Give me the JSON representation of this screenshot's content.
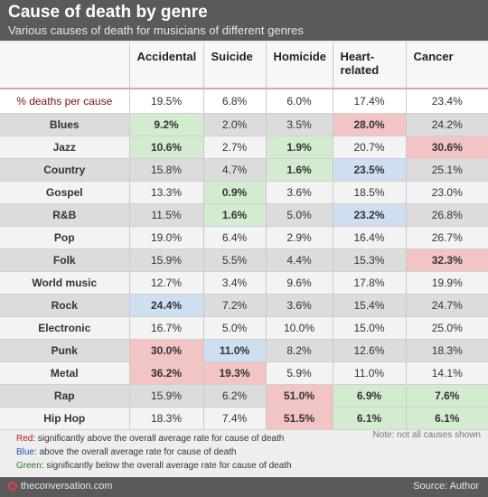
{
  "header": {
    "title": "Cause of death by genre",
    "subtitle": "Various causes of death for musicians of different genres"
  },
  "chart_data": {
    "type": "table",
    "title": "Cause of death by genre",
    "subtitle": "Various causes of death for musicians of different genres",
    "columns": [
      "Accidental",
      "Suicide",
      "Homicide",
      "Heart-related",
      "Cancer"
    ],
    "overall": {
      "label": "% deaths per cause",
      "values": [
        "19.5%",
        "6.8%",
        "6.0%",
        "17.4%",
        "23.4%"
      ]
    },
    "rows": [
      {
        "genre": "Blues",
        "values": [
          "9.2%",
          "2.0%",
          "3.5%",
          "28.0%",
          "24.2%"
        ],
        "flags": [
          "green",
          "",
          "",
          "red",
          ""
        ]
      },
      {
        "genre": "Jazz",
        "values": [
          "10.6%",
          "2.7%",
          "1.9%",
          "20.7%",
          "30.6%"
        ],
        "flags": [
          "green",
          "",
          "green",
          "",
          "red"
        ]
      },
      {
        "genre": "Country",
        "values": [
          "15.8%",
          "4.7%",
          "1.6%",
          "23.5%",
          "25.1%"
        ],
        "flags": [
          "",
          "",
          "green",
          "blue",
          ""
        ]
      },
      {
        "genre": "Gospel",
        "values": [
          "13.3%",
          "0.9%",
          "3.6%",
          "18.5%",
          "23.0%"
        ],
        "flags": [
          "",
          "green",
          "",
          "",
          ""
        ]
      },
      {
        "genre": "R&B",
        "values": [
          "11.5%",
          "1.6%",
          "5.0%",
          "23.2%",
          "26.8%"
        ],
        "flags": [
          "",
          "green",
          "",
          "blue",
          ""
        ]
      },
      {
        "genre": "Pop",
        "values": [
          "19.0%",
          "6.4%",
          "2.9%",
          "16.4%",
          "26.7%"
        ],
        "flags": [
          "",
          "",
          "",
          "",
          ""
        ]
      },
      {
        "genre": "Folk",
        "values": [
          "15.9%",
          "5.5%",
          "4.4%",
          "15.3%",
          "32.3%"
        ],
        "flags": [
          "",
          "",
          "",
          "",
          "red"
        ]
      },
      {
        "genre": "World music",
        "values": [
          "12.7%",
          "3.4%",
          "9.6%",
          "17.8%",
          "19.9%"
        ],
        "flags": [
          "",
          "",
          "",
          "",
          ""
        ]
      },
      {
        "genre": "Rock",
        "values": [
          "24.4%",
          "7.2%",
          "3.6%",
          "15.4%",
          "24.7%"
        ],
        "flags": [
          "blue",
          "",
          "",
          "",
          ""
        ]
      },
      {
        "genre": "Electronic",
        "values": [
          "16.7%",
          "5.0%",
          "10.0%",
          "15.0%",
          "25.0%"
        ],
        "flags": [
          "",
          "",
          "",
          "",
          ""
        ]
      },
      {
        "genre": "Punk",
        "values": [
          "30.0%",
          "11.0%",
          "8.2%",
          "12.6%",
          "18.3%"
        ],
        "flags": [
          "red",
          "blue",
          "",
          "",
          ""
        ]
      },
      {
        "genre": "Metal",
        "values": [
          "36.2%",
          "19.3%",
          "5.9%",
          "11.0%",
          "14.1%"
        ],
        "flags": [
          "red",
          "red",
          "",
          "",
          ""
        ]
      },
      {
        "genre": "Rap",
        "values": [
          "15.9%",
          "6.2%",
          "51.0%",
          "6.9%",
          "7.6%"
        ],
        "flags": [
          "",
          "",
          "red",
          "green",
          "green"
        ]
      },
      {
        "genre": "Hip Hop",
        "values": [
          "18.3%",
          "7.4%",
          "51.5%",
          "6.1%",
          "6.1%"
        ],
        "flags": [
          "",
          "",
          "red",
          "green",
          "green"
        ]
      }
    ],
    "colors": {
      "red": "#f2c4c4",
      "blue": "#cfdff2",
      "green": "#d3ecd0"
    }
  },
  "legend": {
    "red_key": "Red",
    "red_text": ": significantly above the overall average rate for cause of death",
    "blue_key": "Blue",
    "blue_text": ": above the overall average rate for cause of death",
    "green_key": "Green",
    "green_text": ": significantly below the overall average rate for cause of death"
  },
  "note": "Note: not all causes shown",
  "footer": {
    "logo_text": "theconversation.com",
    "logo_icon": "conversation-logo-icon",
    "source": "Source: Author"
  }
}
